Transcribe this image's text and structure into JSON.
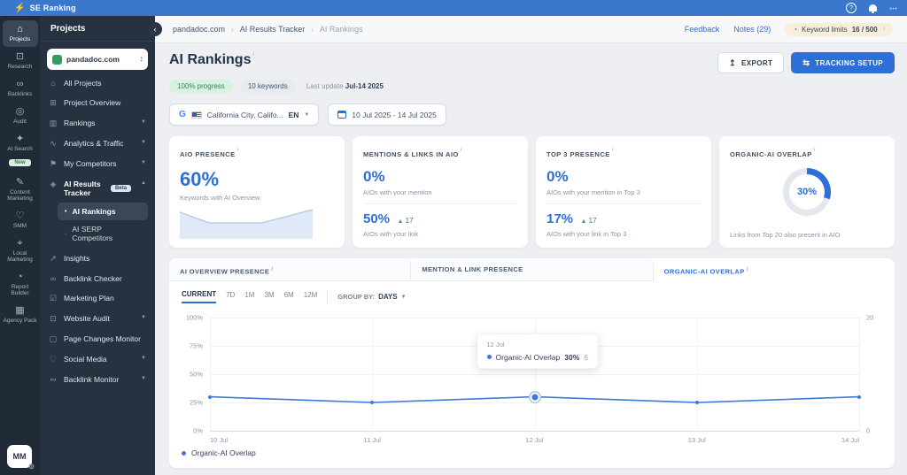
{
  "topbar": {
    "brand": "SE Ranking"
  },
  "breadcrumb": {
    "items": [
      "pandadoc.com",
      "AI Results Tracker",
      "AI Rankings"
    ],
    "feedback": "Feedback",
    "notes": "Notes (29)",
    "keyword_limits_label": "Keyword limits",
    "keyword_limits_value": "16 / 500"
  },
  "nav": {
    "items": [
      {
        "label": "Projects",
        "icon": "home-icon"
      },
      {
        "label": "Research",
        "icon": "monitor-search-icon"
      },
      {
        "label": "Backlinks",
        "icon": "link-icon"
      },
      {
        "label": "Audit",
        "icon": "check-circle-icon"
      },
      {
        "label": "AI Search",
        "icon": "sparkles-icon",
        "badge": "New"
      },
      {
        "label": "Content Marketing",
        "icon": "pencil-doc-icon"
      },
      {
        "label": "SMM",
        "icon": "thumbs-up-icon"
      },
      {
        "label": "Local Marketing",
        "icon": "map-pin-icon"
      },
      {
        "label": "Report Builder",
        "icon": "pie-chart-icon"
      },
      {
        "label": "Agency Pack",
        "icon": "building-icon"
      }
    ],
    "avatar": "MM"
  },
  "projects_panel": {
    "title": "Projects",
    "project": "pandadoc.com",
    "items": [
      {
        "label": "All Projects"
      },
      {
        "label": "Project Overview"
      },
      {
        "label": "Rankings"
      },
      {
        "label": "Analytics & Traffic"
      },
      {
        "label": "My Competitors"
      },
      {
        "label": "AI Results Tracker",
        "badge": "Beta"
      },
      {
        "label": "Insights"
      },
      {
        "label": "Backlink Checker"
      },
      {
        "label": "Marketing Plan"
      },
      {
        "label": "Website Audit"
      },
      {
        "label": "Page Changes Monitor"
      },
      {
        "label": "Social Media"
      },
      {
        "label": "Backlink Monitor"
      }
    ],
    "sub_items": [
      {
        "label": "AI Rankings"
      },
      {
        "label": "AI SERP Competitors"
      }
    ]
  },
  "header": {
    "title": "AI Rankings",
    "progress_badge": "100% progress",
    "keywords_badge": "10 keywords",
    "last_update_label": "Last update",
    "last_update_value": "Jul-14 2025",
    "export_label": "EXPORT",
    "tracking_setup_label": "TRACKING SETUP"
  },
  "filters": {
    "location": "California City, Califo...",
    "language": "EN",
    "date_range": "10 Jul 2025 - 14 Jul 2025"
  },
  "cards": {
    "aio_presence": {
      "title": "AIO PRESENCE",
      "value": "60%",
      "caption": "Keywords with AI Overview"
    },
    "mentions_links": {
      "title": "MENTIONS & LINKS IN AIO",
      "value1": "0%",
      "caption1": "AIOs with your mention",
      "value2": "50%",
      "delta2": "17",
      "caption2": "AIOs with your link"
    },
    "top3": {
      "title": "TOP 3 PRESENCE",
      "value1": "0%",
      "caption1": "AIOs with your mention in Top 3",
      "value2": "17%",
      "delta2": "17",
      "caption2": "AIOs with your link in Top 3"
    },
    "overlap": {
      "title": "ORGANIC-AI OVERLAP",
      "value": "30%",
      "percent": 30,
      "caption": "Links from Top 20 also present in AIO"
    }
  },
  "chart_section": {
    "tabs": [
      {
        "label": "AI OVERVIEW PRESENCE"
      },
      {
        "label": "MENTION & LINK PRESENCE"
      },
      {
        "label": "ORGANIC-AI OVERLAP"
      }
    ],
    "ranges": [
      "CURRENT",
      "7D",
      "1M",
      "3M",
      "6M",
      "12M"
    ],
    "group_by_label": "GROUP BY:",
    "group_by_value": "DAYS",
    "tooltip": {
      "date": "12 Jul",
      "series": "Organic-AI Overlap",
      "value": "30%",
      "count": "6"
    },
    "legend": "Organic-AI Overlap"
  },
  "chart_data": {
    "type": "line",
    "title": "Organic-AI Overlap",
    "x": [
      "10 Jul",
      "11 Jul",
      "12 Jul",
      "13 Jul",
      "14 Jul"
    ],
    "series": [
      {
        "name": "Organic-AI Overlap",
        "values": [
          30,
          25,
          30,
          25,
          30
        ]
      }
    ],
    "highlight_index": 2,
    "highlight_count": 6,
    "xlabel": "",
    "ylabel": "",
    "y_left": {
      "ticks": [
        "100%",
        "75%",
        "50%",
        "25%",
        "0%"
      ],
      "min": 0,
      "max": 100
    },
    "y_right": {
      "ticks": [
        "20",
        "0"
      ],
      "min": 0,
      "max": 20
    },
    "grid": true,
    "legend_position": "bottom-left",
    "line_color": "#3d7ad6"
  },
  "colors": {
    "topbar_blue": "#3b78cd",
    "accent_blue": "#2c6fd6",
    "line_blue": "#3d7ad6",
    "green_badge_bg": "#d9f1e1",
    "green_badge_text": "#34845c",
    "sidebar_dark": "#202b37",
    "panel_dark": "#273240",
    "donut_track": "#e4e8ee"
  }
}
